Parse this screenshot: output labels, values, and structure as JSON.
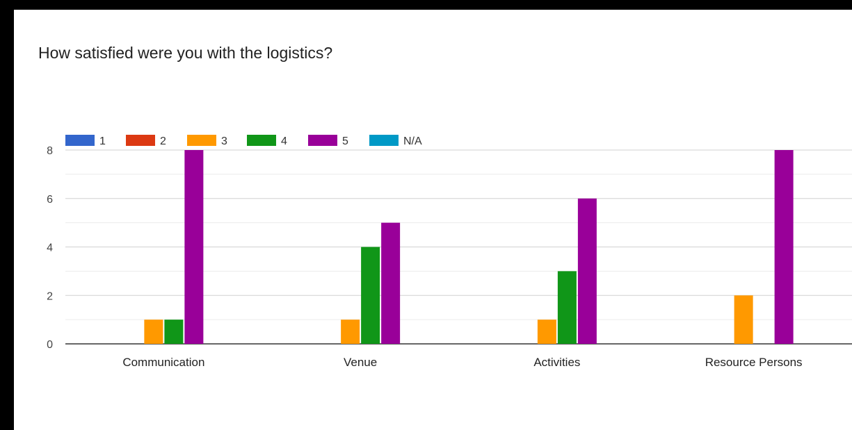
{
  "chart_data": {
    "type": "bar",
    "title": "How satisfied were you with the logistics?",
    "categories": [
      "Communication",
      "Venue",
      "Activities",
      "Resource Persons"
    ],
    "series": [
      {
        "name": "1",
        "color": "#3366cc",
        "values": [
          0,
          0,
          0,
          0
        ]
      },
      {
        "name": "2",
        "color": "#dc3912",
        "values": [
          0,
          0,
          0,
          0
        ]
      },
      {
        "name": "3",
        "color": "#ff9900",
        "values": [
          1,
          1,
          1,
          2
        ]
      },
      {
        "name": "4",
        "color": "#109618",
        "values": [
          1,
          4,
          3,
          0
        ]
      },
      {
        "name": "5",
        "color": "#990099",
        "values": [
          8,
          5,
          6,
          8
        ]
      },
      {
        "name": "N/A",
        "color": "#0099c6",
        "values": [
          0,
          0,
          0,
          0
        ]
      }
    ],
    "ylim": [
      0,
      8
    ],
    "yticks": [
      0,
      2,
      4,
      6,
      8
    ],
    "grid": true,
    "legend_position": "top-left"
  }
}
